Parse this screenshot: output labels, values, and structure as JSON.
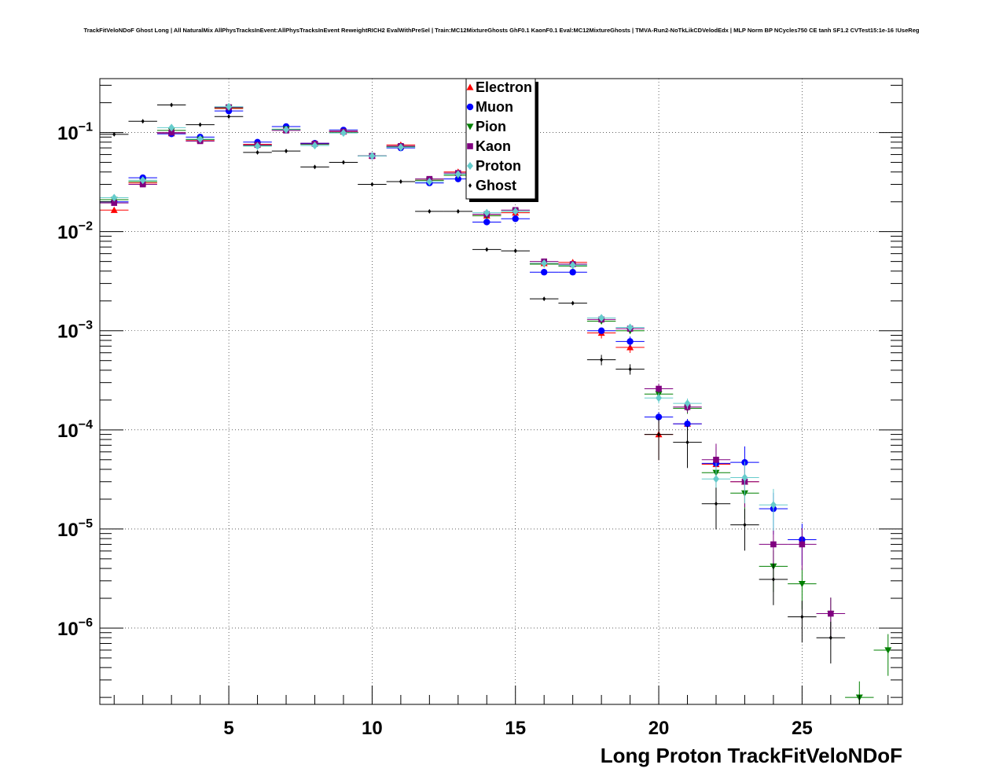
{
  "chart_data": {
    "type": "scatter",
    "title": "TrackFitVeloNDoF Ghost Long | All NaturalMix AllPhysTracksInEvent:AllPhysTracksInEvent ReweightRICH2 EvalWithPreSel | Train:MC12MixtureGhosts GhF0.1 KaonF0.1 Eval:MC12MixtureGhosts | TMVA-Run2-NoTkLikCDVelodEdx | MLP Norm BP NCycles750 CE tanh SF1.2 CVTest15:1e-16 !UseReg",
    "xlabel": "Long Proton TrackFitVeloNDoF",
    "ylabel": "",
    "xlim": [
      0.5,
      28.5
    ],
    "ylim": [
      1.7e-07,
      0.35
    ],
    "yscale": "log",
    "grid": true,
    "legend_position": "top-center",
    "x_ticks": [
      "5",
      "10",
      "15",
      "20",
      "25"
    ],
    "y_ticks": [
      {
        "base": "10",
        "exp": "−1"
      },
      {
        "base": "10",
        "exp": "−2"
      },
      {
        "base": "10",
        "exp": "−3"
      },
      {
        "base": "10",
        "exp": "−4"
      },
      {
        "base": "10",
        "exp": "−5"
      },
      {
        "base": "10",
        "exp": "−6"
      }
    ],
    "series": [
      {
        "name": "Electron",
        "color": "#ff0000",
        "marker": "triangle-up",
        "x": [
          1,
          2,
          3,
          4,
          5,
          6,
          7,
          8,
          9,
          10,
          11,
          12,
          13,
          14,
          15,
          16,
          17,
          18,
          19,
          20,
          21,
          22,
          23
        ],
        "y": [
          0.0165,
          0.031,
          0.098,
          0.084,
          0.175,
          0.076,
          0.106,
          0.078,
          0.103,
          0.058,
          0.075,
          0.033,
          0.04,
          0.0145,
          0.0155,
          0.0048,
          0.0049,
          0.00095,
          0.00068,
          9e-05,
          0.000115,
          4.5e-05,
          3e-05
        ]
      },
      {
        "name": "Muon",
        "color": "#0000ff",
        "marker": "circle",
        "x": [
          1,
          2,
          3,
          4,
          5,
          6,
          7,
          8,
          9,
          10,
          11,
          12,
          13,
          14,
          15,
          16,
          17,
          18,
          19,
          20,
          21,
          22,
          23,
          24,
          25
        ],
        "y": [
          0.02,
          0.035,
          0.097,
          0.09,
          0.165,
          0.08,
          0.115,
          0.078,
          0.106,
          0.058,
          0.07,
          0.031,
          0.034,
          0.0125,
          0.0135,
          0.0039,
          0.0039,
          0.001,
          0.00078,
          0.000135,
          0.000115,
          4.6e-05,
          4.7e-05,
          1.6e-05,
          7.8e-06
        ]
      },
      {
        "name": "Pion",
        "color": "#008000",
        "marker": "triangle-down",
        "x": [
          1,
          2,
          3,
          4,
          5,
          6,
          7,
          8,
          9,
          10,
          11,
          12,
          13,
          14,
          15,
          16,
          17,
          18,
          19,
          20,
          21,
          22,
          23,
          24,
          25,
          26,
          27,
          28
        ],
        "y": [
          0.021,
          0.032,
          0.105,
          0.085,
          0.178,
          0.074,
          0.108,
          0.076,
          0.1,
          0.058,
          0.072,
          0.033,
          0.037,
          0.0145,
          0.016,
          0.0047,
          0.0045,
          0.00125,
          0.001,
          0.00023,
          0.000165,
          3.7e-05,
          2.3e-05,
          4.2e-06,
          2.8e-06,
          1.4e-06,
          2e-07,
          6e-07
        ]
      },
      {
        "name": "Kaon",
        "color": "#800080",
        "marker": "square",
        "x": [
          1,
          2,
          3,
          4,
          5,
          6,
          7,
          8,
          9,
          10,
          11,
          12,
          13,
          14,
          15,
          16,
          17,
          18,
          19,
          20,
          21,
          22,
          23,
          24,
          25,
          26
        ],
        "y": [
          0.0195,
          0.03,
          0.1,
          0.082,
          0.18,
          0.075,
          0.105,
          0.077,
          0.102,
          0.058,
          0.073,
          0.034,
          0.039,
          0.015,
          0.0165,
          0.005,
          0.0047,
          0.0013,
          0.00105,
          0.00026,
          0.00017,
          5e-05,
          3e-05,
          7e-06,
          7e-06,
          1.4e-06
        ]
      },
      {
        "name": "Proton",
        "color": "#66cccc",
        "marker": "diamond",
        "x": [
          1,
          2,
          3,
          4,
          5,
          6,
          7,
          8,
          9,
          10,
          11,
          12,
          13,
          14,
          15,
          16,
          17,
          18,
          19,
          20,
          21,
          22,
          23,
          24
        ],
        "y": [
          0.022,
          0.033,
          0.112,
          0.086,
          0.182,
          0.073,
          0.107,
          0.074,
          0.099,
          0.058,
          0.071,
          0.032,
          0.038,
          0.0155,
          0.016,
          0.0048,
          0.0046,
          0.00135,
          0.00108,
          0.00021,
          0.000185,
          3.2e-05,
          3.3e-05,
          1.75e-05
        ]
      },
      {
        "name": "Ghost",
        "color": "#000000",
        "marker": "small-diamond",
        "x": [
          1,
          2,
          3,
          4,
          5,
          6,
          7,
          8,
          9,
          10,
          11,
          12,
          13,
          14,
          15,
          16,
          17,
          18,
          19,
          20,
          21,
          22,
          23,
          24,
          25,
          26
        ],
        "y": [
          0.096,
          0.13,
          0.19,
          0.12,
          0.145,
          0.063,
          0.065,
          0.045,
          0.05,
          0.03,
          0.032,
          0.016,
          0.016,
          0.0066,
          0.0064,
          0.0021,
          0.0019,
          0.00051,
          0.00041,
          9e-05,
          7.5e-05,
          1.8e-05,
          1.1e-05,
          3.1e-06,
          1.3e-06,
          8e-07
        ]
      }
    ]
  }
}
